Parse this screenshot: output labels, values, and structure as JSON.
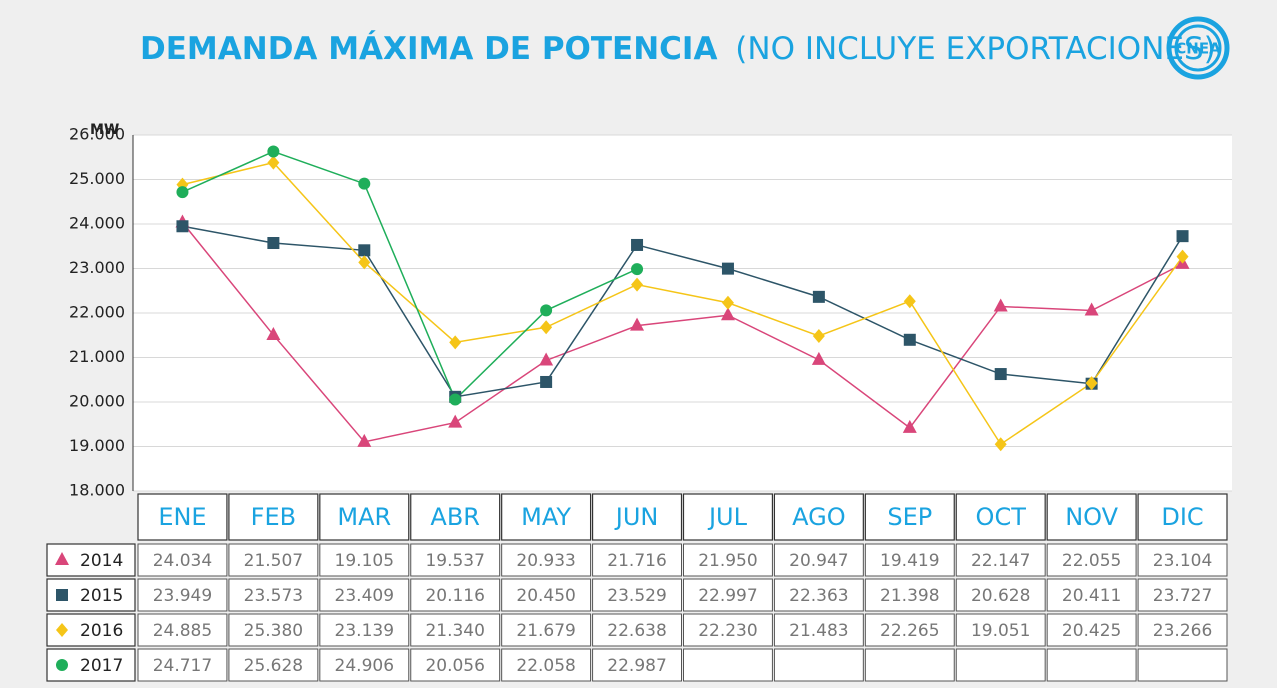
{
  "chart_data": {
    "type": "line",
    "title": "DEMANDA MÁXIMA DE POTENCIA",
    "subtitle": "(NO INCLUYE EXPORTACIONES)",
    "logo": "CNEA",
    "y_label": "MW",
    "categories": [
      "ENE",
      "FEB",
      "MAR",
      "ABR",
      "MAY",
      "JUN",
      "JUL",
      "AGO",
      "SEP",
      "OCT",
      "NOV",
      "DIC"
    ],
    "ylim": [
      18000,
      26000
    ],
    "yticks": [
      {
        "value": 18000,
        "label": "18.000"
      },
      {
        "value": 19000,
        "label": "19.000"
      },
      {
        "value": 20000,
        "label": "20.000"
      },
      {
        "value": 21000,
        "label": "21.000"
      },
      {
        "value": 22000,
        "label": "22.000"
      },
      {
        "value": 23000,
        "label": "23.000"
      },
      {
        "value": 24000,
        "label": "24.000"
      },
      {
        "value": 25000,
        "label": "25.000"
      },
      {
        "value": 26000,
        "label": "26.000"
      }
    ],
    "grid": true,
    "series": [
      {
        "name": "2014",
        "color": "#d9467a",
        "marker": "triangle",
        "values": [
          24034,
          21507,
          19105,
          19537,
          20933,
          21716,
          21950,
          20947,
          19419,
          22147,
          22055,
          23104
        ],
        "value_labels": [
          "24.034",
          "21.507",
          "19.105",
          "19.537",
          "20.933",
          "21.716",
          "21.950",
          "20.947",
          "19.419",
          "22.147",
          "22.055",
          "23.104"
        ]
      },
      {
        "name": "2015",
        "color": "#2d5568",
        "marker": "square",
        "values": [
          23949,
          23573,
          23409,
          20116,
          20450,
          23529,
          22997,
          22363,
          21398,
          20628,
          20411,
          23727
        ],
        "value_labels": [
          "23.949",
          "23.573",
          "23.409",
          "20.116",
          "20.450",
          "23.529",
          "22.997",
          "22.363",
          "21.398",
          "20.628",
          "20.411",
          "23.727"
        ]
      },
      {
        "name": "2016",
        "color": "#f5c518",
        "marker": "diamond",
        "values": [
          24885,
          25380,
          23139,
          21340,
          21679,
          22638,
          22230,
          21483,
          22265,
          19051,
          20425,
          23266
        ],
        "value_labels": [
          "24.885",
          "25.380",
          "23.139",
          "21.340",
          "21.679",
          "22.638",
          "22.230",
          "21.483",
          "22.265",
          "19.051",
          "20.425",
          "23.266"
        ]
      },
      {
        "name": "2017",
        "color": "#1fae5a",
        "marker": "circle",
        "values": [
          24717,
          25628,
          24906,
          20056,
          22058,
          22987,
          null,
          null,
          null,
          null,
          null,
          null
        ],
        "value_labels": [
          "24.717",
          "25.628",
          "24.906",
          "20.056",
          "22.058",
          "22.987",
          null,
          null,
          null,
          null,
          null,
          null
        ]
      }
    ]
  }
}
